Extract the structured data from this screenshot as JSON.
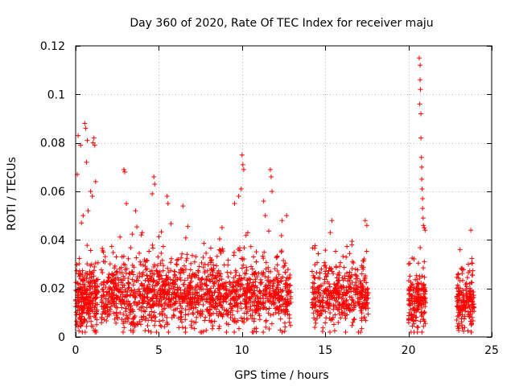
{
  "chart_data": {
    "type": "scatter",
    "title": "Day 360 of 2020, Rate Of TEC Index for receiver maju",
    "xlabel": "GPS time / hours",
    "ylabel": "ROTI / TECUs",
    "xlim": [
      0,
      25
    ],
    "ylim": [
      0,
      0.12
    ],
    "x_ticks": [
      0,
      5,
      10,
      15,
      20,
      25
    ],
    "x_tick_labels": [
      "0",
      "5",
      "10",
      "15",
      "20",
      "25"
    ],
    "y_ticks": [
      0,
      0.02,
      0.04,
      0.06,
      0.08,
      0.1,
      0.12
    ],
    "y_tick_labels": [
      "0",
      "0.02",
      "0.04",
      "0.06",
      "0.08",
      "0.1",
      "0.12"
    ],
    "grid": true,
    "marker": "+",
    "marker_color": "#ff0000",
    "segments": [
      {
        "start": 0.0,
        "end": 1.35,
        "base": 0.016,
        "spread": 0.013,
        "count": 260
      },
      {
        "start": 1.5,
        "end": 12.95,
        "base": 0.017,
        "spread": 0.014,
        "count": 1500
      },
      {
        "start": 14.2,
        "end": 17.6,
        "base": 0.016,
        "spread": 0.013,
        "count": 420
      },
      {
        "start": 20.0,
        "end": 21.05,
        "base": 0.014,
        "spread": 0.012,
        "count": 170
      },
      {
        "start": 22.9,
        "end": 23.95,
        "base": 0.014,
        "spread": 0.012,
        "count": 170
      }
    ],
    "series": [
      {
        "name": "ROTI",
        "points": [
          {
            "x": 0.1,
            "y": 0.067
          },
          {
            "x": 0.15,
            "y": 0.083
          },
          {
            "x": 0.3,
            "y": 0.079
          },
          {
            "x": 0.55,
            "y": 0.088
          },
          {
            "x": 0.6,
            "y": 0.086
          },
          {
            "x": 0.65,
            "y": 0.072
          },
          {
            "x": 0.7,
            "y": 0.081
          },
          {
            "x": 0.75,
            "y": 0.052
          },
          {
            "x": 1.05,
            "y": 0.08
          },
          {
            "x": 1.1,
            "y": 0.082
          },
          {
            "x": 1.15,
            "y": 0.079
          },
          {
            "x": 1.2,
            "y": 0.064
          },
          {
            "x": 0.9,
            "y": 0.06
          },
          {
            "x": 1.0,
            "y": 0.058
          },
          {
            "x": 0.35,
            "y": 0.047
          },
          {
            "x": 0.45,
            "y": 0.05
          },
          {
            "x": 2.9,
            "y": 0.069
          },
          {
            "x": 2.95,
            "y": 0.068
          },
          {
            "x": 3.05,
            "y": 0.055
          },
          {
            "x": 3.6,
            "y": 0.052
          },
          {
            "x": 4.6,
            "y": 0.059
          },
          {
            "x": 4.7,
            "y": 0.066
          },
          {
            "x": 4.75,
            "y": 0.063
          },
          {
            "x": 5.5,
            "y": 0.058
          },
          {
            "x": 5.55,
            "y": 0.055
          },
          {
            "x": 6.45,
            "y": 0.054
          },
          {
            "x": 3.95,
            "y": 0.042
          },
          {
            "x": 4.0,
            "y": 0.043
          },
          {
            "x": 9.55,
            "y": 0.055
          },
          {
            "x": 9.8,
            "y": 0.058
          },
          {
            "x": 10.0,
            "y": 0.075
          },
          {
            "x": 10.05,
            "y": 0.071
          },
          {
            "x": 10.1,
            "y": 0.069
          },
          {
            "x": 9.95,
            "y": 0.061
          },
          {
            "x": 11.3,
            "y": 0.056
          },
          {
            "x": 11.7,
            "y": 0.069
          },
          {
            "x": 11.75,
            "y": 0.066
          },
          {
            "x": 11.8,
            "y": 0.06
          },
          {
            "x": 11.4,
            "y": 0.05
          },
          {
            "x": 12.4,
            "y": 0.048
          },
          {
            "x": 15.4,
            "y": 0.048
          },
          {
            "x": 15.3,
            "y": 0.043
          },
          {
            "x": 17.4,
            "y": 0.048
          },
          {
            "x": 17.5,
            "y": 0.046
          },
          {
            "x": 16.6,
            "y": 0.038
          },
          {
            "x": 20.65,
            "y": 0.115
          },
          {
            "x": 20.7,
            "y": 0.112
          },
          {
            "x": 20.7,
            "y": 0.106
          },
          {
            "x": 20.72,
            "y": 0.102
          },
          {
            "x": 20.68,
            "y": 0.096
          },
          {
            "x": 20.75,
            "y": 0.092
          },
          {
            "x": 20.75,
            "y": 0.082
          },
          {
            "x": 20.78,
            "y": 0.074
          },
          {
            "x": 20.8,
            "y": 0.07
          },
          {
            "x": 20.8,
            "y": 0.065
          },
          {
            "x": 20.82,
            "y": 0.061
          },
          {
            "x": 20.85,
            "y": 0.057
          },
          {
            "x": 20.85,
            "y": 0.053
          },
          {
            "x": 20.88,
            "y": 0.049
          },
          {
            "x": 20.9,
            "y": 0.046
          },
          {
            "x": 20.95,
            "y": 0.045
          },
          {
            "x": 21.0,
            "y": 0.044
          },
          {
            "x": 23.1,
            "y": 0.036
          },
          {
            "x": 23.75,
            "y": 0.044
          },
          {
            "x": 23.6,
            "y": 0.03
          }
        ]
      }
    ]
  }
}
